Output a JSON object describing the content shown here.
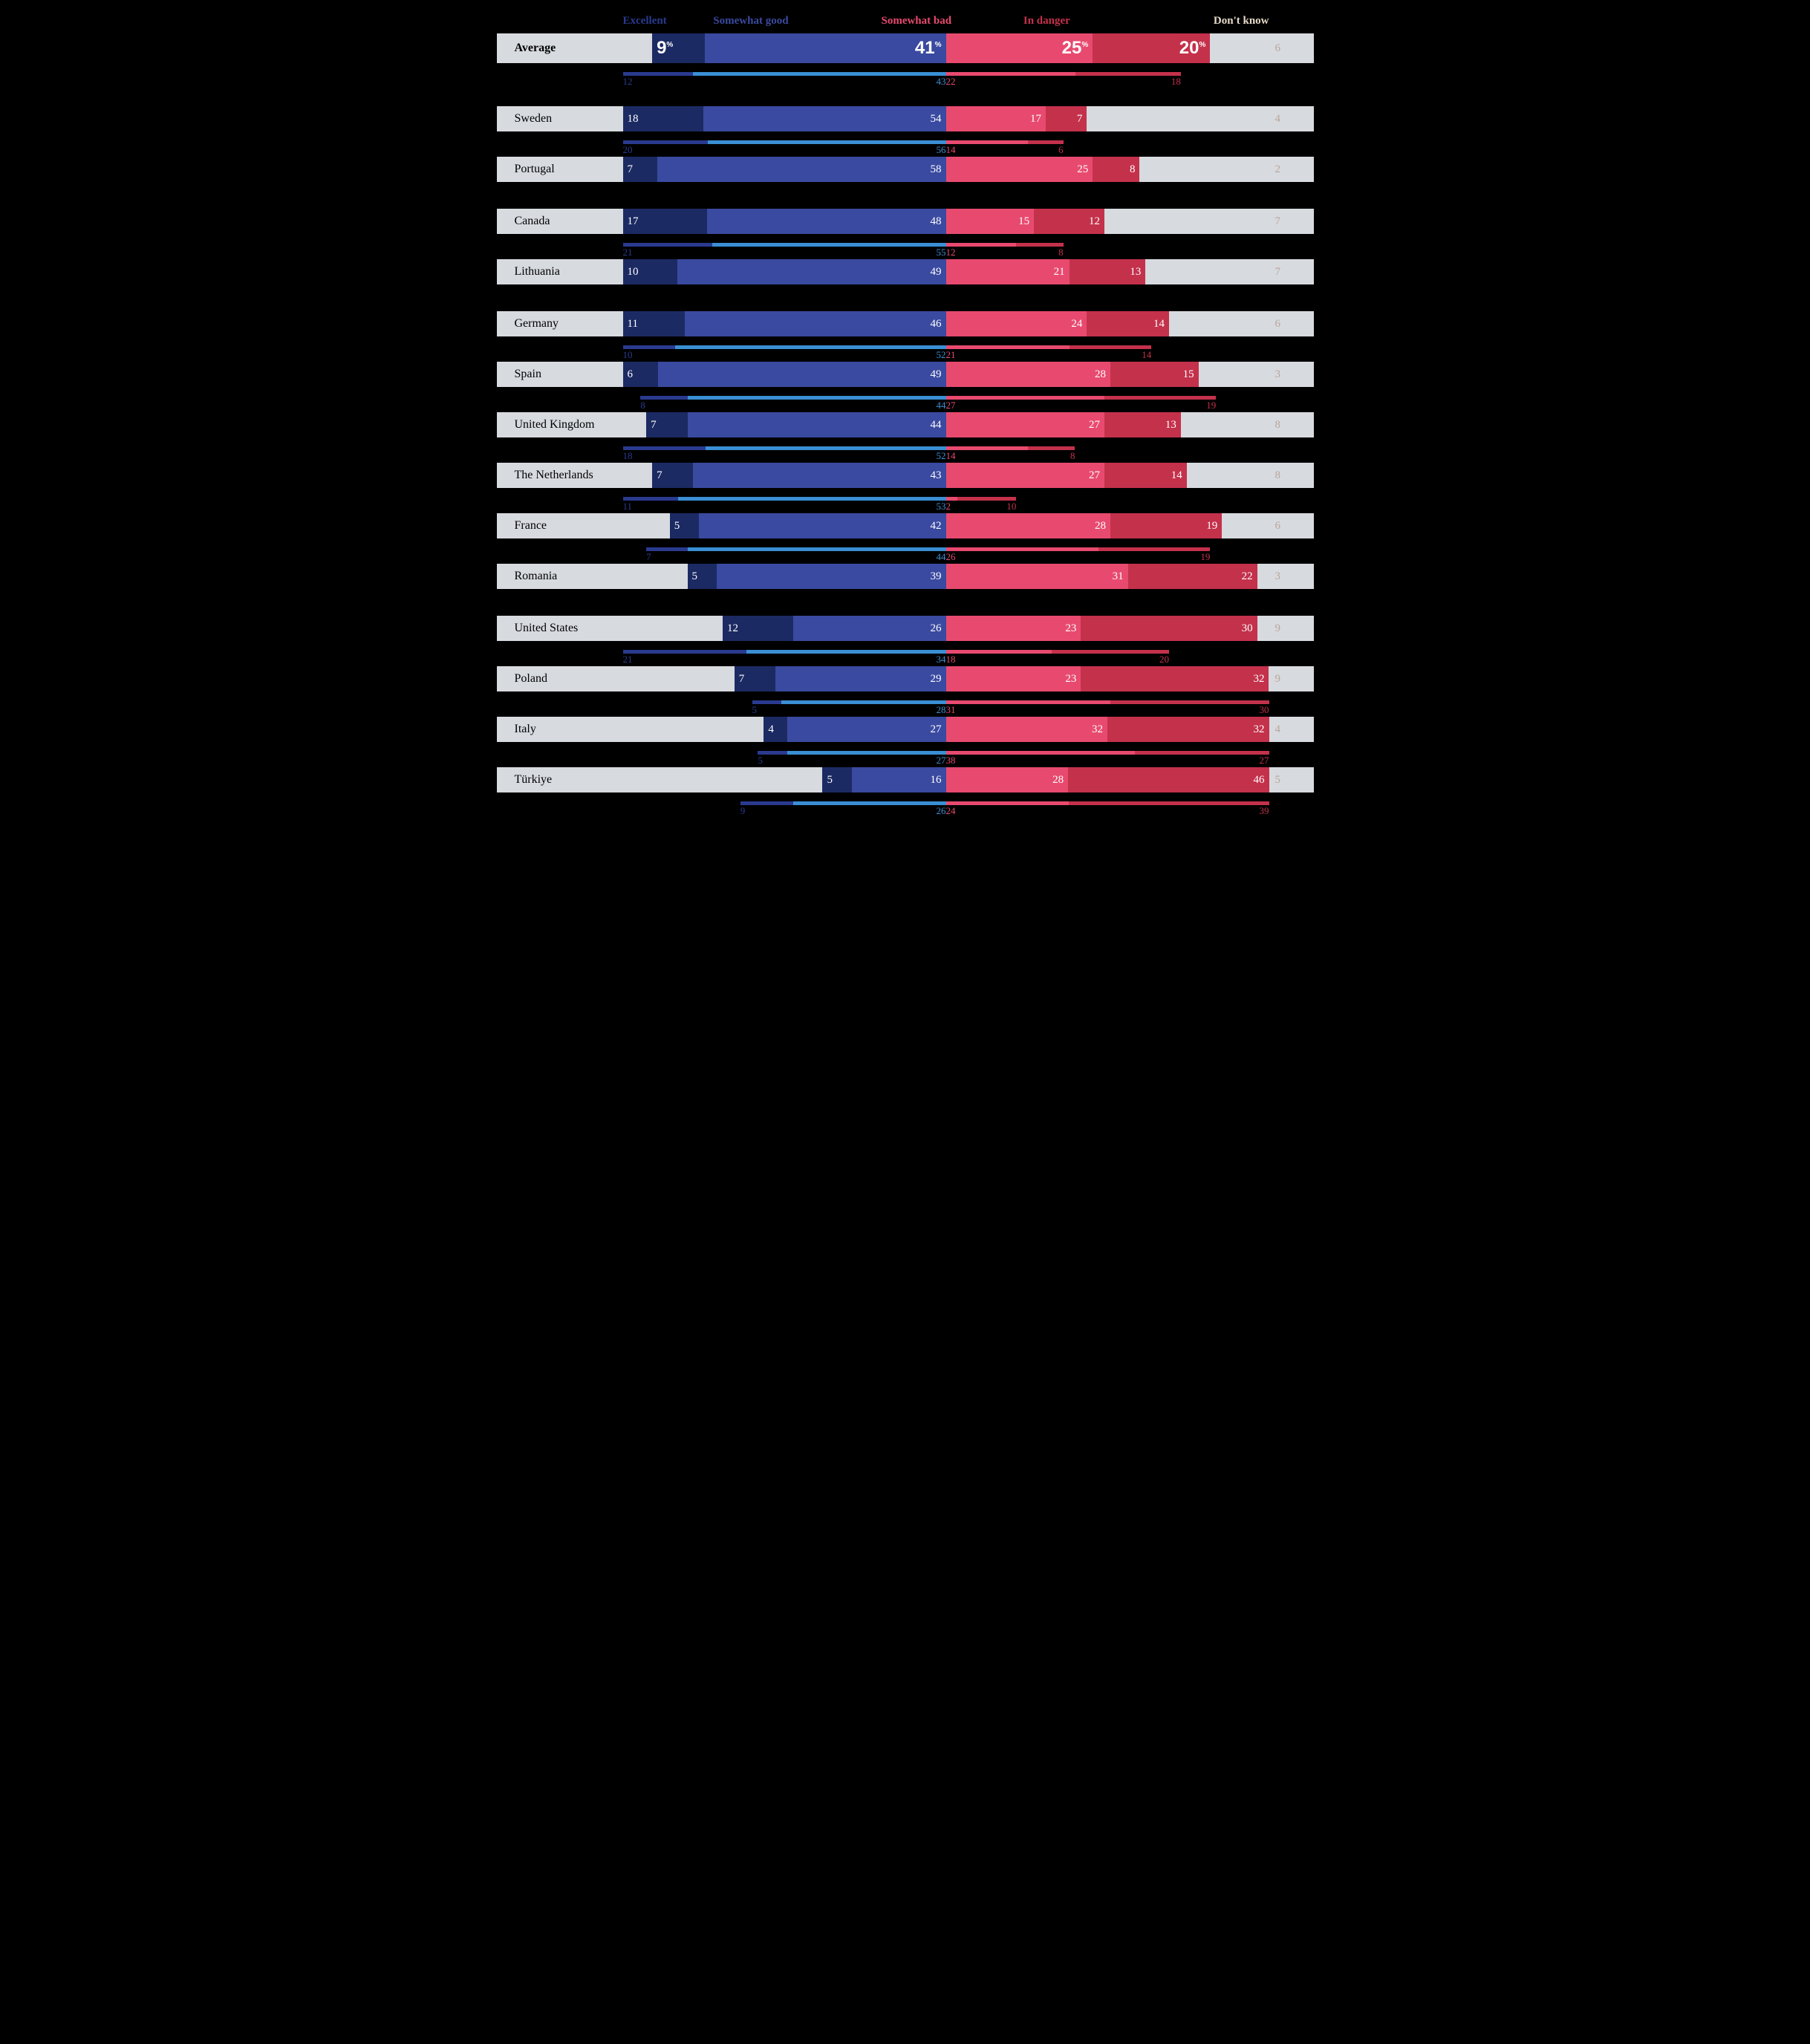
{
  "colors": {
    "excellent": "#1c2a63",
    "good": "#3a4aa0",
    "bad": "#e84a6f",
    "danger": "#c4314b",
    "sub_excellent": "#2a3a8f",
    "sub_good": "#3a8fd4",
    "sub_bad": "#e84a6f",
    "sub_danger": "#c4314b",
    "row_bg": "#d7dadf",
    "dk": "#b9a79a",
    "bg": "#000000"
  },
  "legend": {
    "excellent": "Excellent",
    "good": "Somewhat good",
    "bad": "Somewhat bad",
    "danger": "In danger",
    "dk": "Don't know"
  },
  "legend_colors": {
    "excellent": "#2a3a8f",
    "good": "#3a4aa0",
    "bad": "#e84a6f",
    "danger": "#c4314b",
    "dk": "#e5d8c8"
  },
  "scale_max": 55,
  "rows": [
    {
      "label": "Average",
      "bold": true,
      "show_pct": true,
      "values": {
        "excellent": 9,
        "good": 41,
        "bad": 25,
        "danger": 20,
        "dk": 6
      },
      "sub": {
        "excellent": 12,
        "good": 43,
        "bad": 22,
        "danger": 18
      },
      "gapafter": true
    },
    {
      "label": "Sweden",
      "values": {
        "excellent": 18,
        "good": 54,
        "bad": 17,
        "danger": 7,
        "dk": 4
      },
      "sub": {
        "excellent": 20,
        "good": 56,
        "bad": 14,
        "danger": 6
      }
    },
    {
      "label": "Portugal",
      "values": {
        "excellent": 7,
        "good": 58,
        "bad": 25,
        "danger": 8,
        "dk": 2
      },
      "gapafter": true
    },
    {
      "label": "Canada",
      "values": {
        "excellent": 17,
        "good": 48,
        "bad": 15,
        "danger": 12,
        "dk": 7
      },
      "sub": {
        "excellent": 21,
        "good": 55,
        "bad": 12,
        "danger": 8
      }
    },
    {
      "label": "Lithuania",
      "values": {
        "excellent": 10,
        "good": 49,
        "bad": 21,
        "danger": 13,
        "dk": 7
      },
      "gapafter": true
    },
    {
      "label": "Germany",
      "values": {
        "excellent": 11,
        "good": 46,
        "bad": 24,
        "danger": 14,
        "dk": 6
      },
      "sub": {
        "excellent": 10,
        "good": 52,
        "bad": 21,
        "danger": 14
      }
    },
    {
      "label": "Spain",
      "values": {
        "excellent": 6,
        "good": 49,
        "bad": 28,
        "danger": 15,
        "dk": 3
      },
      "sub": {
        "excellent": 8,
        "good": 44,
        "bad": 27,
        "danger": 19
      }
    },
    {
      "label": "United Kingdom",
      "values": {
        "excellent": 7,
        "good": 44,
        "bad": 27,
        "danger": 13,
        "dk": 8
      },
      "sub": {
        "excellent": 18,
        "good": 52,
        "bad": 14,
        "danger": 8
      }
    },
    {
      "label": "The Netherlands",
      "values": {
        "excellent": 7,
        "good": 43,
        "bad": 27,
        "danger": 14,
        "dk": 8
      },
      "sub": {
        "excellent": 11,
        "good": 53,
        "bad": 2,
        "danger": 10
      }
    },
    {
      "label": "France",
      "values": {
        "excellent": 5,
        "good": 42,
        "bad": 28,
        "danger": 19,
        "dk": 6
      },
      "sub": {
        "excellent": 7,
        "good": 44,
        "bad": 26,
        "danger": 19
      }
    },
    {
      "label": "Romania",
      "values": {
        "excellent": 5,
        "good": 39,
        "bad": 31,
        "danger": 22,
        "dk": 3
      },
      "gapafter": true
    },
    {
      "label": "United States",
      "values": {
        "excellent": 12,
        "good": 26,
        "bad": 23,
        "danger": 30,
        "dk": 9
      },
      "sub": {
        "excellent": 21,
        "good": 34,
        "bad": 18,
        "danger": 20
      }
    },
    {
      "label": "Poland",
      "values": {
        "excellent": 7,
        "good": 29,
        "bad": 23,
        "danger": 32,
        "dk": 9
      },
      "sub": {
        "excellent": 5,
        "good": 28,
        "bad": 31,
        "danger": 30
      }
    },
    {
      "label": "Italy",
      "values": {
        "excellent": 4,
        "good": 27,
        "bad": 32,
        "danger": 32,
        "dk": 4
      },
      "sub": {
        "excellent": 5,
        "good": 27,
        "bad": 38,
        "danger": 27
      }
    },
    {
      "label": "Türkiye",
      "values": {
        "excellent": 5,
        "good": 16,
        "bad": 28,
        "danger": 46,
        "dk": 5
      },
      "sub": {
        "excellent": 9,
        "good": 26,
        "bad": 24,
        "danger": 39
      }
    }
  ]
}
